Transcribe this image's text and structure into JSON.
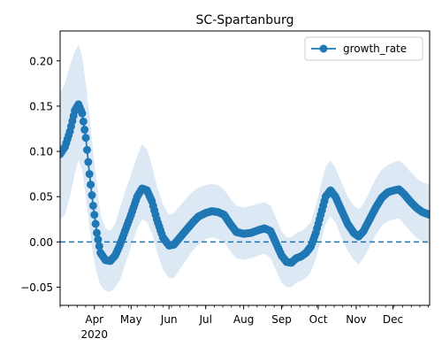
{
  "chart_data": {
    "type": "line",
    "title": "SC-Spartanburg",
    "xlabel": "",
    "ylabel": "",
    "x_range": [
      "2020-03-04",
      "2020-12-31"
    ],
    "ylim": [
      -0.07,
      0.233
    ],
    "grid": false,
    "legend": {
      "placement": "top-right",
      "entries": [
        "growth_rate"
      ]
    },
    "reference_line": {
      "y": 0.0,
      "style": "dashed"
    },
    "y_ticks": [
      -0.05,
      0.0,
      0.05,
      0.1,
      0.15,
      0.2
    ],
    "y_tick_labels": [
      "−0.05",
      "0.00",
      "0.05",
      "0.10",
      "0.15",
      "0.20"
    ],
    "x_ticks": [
      {
        "date": "2020-04-01",
        "label": "Apr",
        "sublabel": "2020"
      },
      {
        "date": "2020-05-01",
        "label": "May"
      },
      {
        "date": "2020-06-01",
        "label": "Jun"
      },
      {
        "date": "2020-07-01",
        "label": "Jul"
      },
      {
        "date": "2020-08-01",
        "label": "Aug"
      },
      {
        "date": "2020-09-01",
        "label": "Sep"
      },
      {
        "date": "2020-10-01",
        "label": "Oct"
      },
      {
        "date": "2020-11-01",
        "label": "Nov"
      },
      {
        "date": "2020-12-01",
        "label": "Dec"
      }
    ],
    "series": [
      {
        "name": "growth_rate",
        "color": "#1f77b4",
        "band_color": "#dce9f5",
        "points": [
          [
            "2020-03-04",
            0.097,
            0.025,
            0.165
          ],
          [
            "2020-03-08",
            0.105,
            0.03,
            0.175
          ],
          [
            "2020-03-12",
            0.122,
            0.05,
            0.195
          ],
          [
            "2020-03-16",
            0.145,
            0.075,
            0.21
          ],
          [
            "2020-03-19",
            0.152,
            0.09,
            0.218
          ],
          [
            "2020-03-22",
            0.142,
            0.08,
            0.205
          ],
          [
            "2020-03-25",
            0.115,
            0.05,
            0.175
          ],
          [
            "2020-03-28",
            0.075,
            0.015,
            0.14
          ],
          [
            "2020-03-31",
            0.04,
            -0.015,
            0.1
          ],
          [
            "2020-04-03",
            0.01,
            -0.035,
            0.065
          ],
          [
            "2020-04-06",
            -0.012,
            -0.048,
            0.03
          ],
          [
            "2020-04-10",
            -0.02,
            -0.054,
            0.015
          ],
          [
            "2020-04-14",
            -0.021,
            -0.055,
            0.012
          ],
          [
            "2020-04-18",
            -0.015,
            -0.05,
            0.02
          ],
          [
            "2020-04-22",
            -0.003,
            -0.042,
            0.038
          ],
          [
            "2020-04-26",
            0.012,
            -0.025,
            0.055
          ],
          [
            "2020-05-01",
            0.03,
            -0.005,
            0.075
          ],
          [
            "2020-05-06",
            0.05,
            0.015,
            0.095
          ],
          [
            "2020-05-10",
            0.059,
            0.025,
            0.108
          ],
          [
            "2020-05-14",
            0.057,
            0.022,
            0.102
          ],
          [
            "2020-05-18",
            0.045,
            0.01,
            0.085
          ],
          [
            "2020-05-22",
            0.025,
            -0.01,
            0.062
          ],
          [
            "2020-05-27",
            0.005,
            -0.03,
            0.042
          ],
          [
            "2020-06-01",
            -0.004,
            -0.04,
            0.03
          ],
          [
            "2020-06-05",
            -0.003,
            -0.04,
            0.032
          ],
          [
            "2020-06-10",
            0.005,
            -0.03,
            0.04
          ],
          [
            "2020-06-15",
            0.013,
            -0.02,
            0.048
          ],
          [
            "2020-06-20",
            0.021,
            -0.01,
            0.055
          ],
          [
            "2020-06-25",
            0.028,
            -0.003,
            0.06
          ],
          [
            "2020-07-01",
            0.032,
            0.003,
            0.063
          ],
          [
            "2020-07-06",
            0.034,
            0.005,
            0.064
          ],
          [
            "2020-07-11",
            0.033,
            0.003,
            0.063
          ],
          [
            "2020-07-16",
            0.03,
            0.0,
            0.058
          ],
          [
            "2020-07-21",
            0.02,
            -0.01,
            0.048
          ],
          [
            "2020-07-26",
            0.011,
            -0.018,
            0.04
          ],
          [
            "2020-08-01",
            0.009,
            -0.02,
            0.038
          ],
          [
            "2020-08-07",
            0.01,
            -0.018,
            0.04
          ],
          [
            "2020-08-13",
            0.013,
            -0.015,
            0.042
          ],
          [
            "2020-08-18",
            0.015,
            -0.013,
            0.044
          ],
          [
            "2020-08-23",
            0.012,
            -0.018,
            0.04
          ],
          [
            "2020-08-27",
            0.0,
            -0.03,
            0.028
          ],
          [
            "2020-09-01",
            -0.015,
            -0.045,
            0.012
          ],
          [
            "2020-09-05",
            -0.022,
            -0.05,
            0.005
          ],
          [
            "2020-09-09",
            -0.023,
            -0.05,
            0.005
          ],
          [
            "2020-09-13",
            -0.018,
            -0.045,
            0.01
          ],
          [
            "2020-09-17",
            -0.016,
            -0.043,
            0.012
          ],
          [
            "2020-09-21",
            -0.012,
            -0.04,
            0.016
          ],
          [
            "2020-09-25",
            -0.005,
            -0.033,
            0.022
          ],
          [
            "2020-09-29",
            0.01,
            -0.018,
            0.04
          ],
          [
            "2020-10-03",
            0.03,
            0.0,
            0.062
          ],
          [
            "2020-10-07",
            0.05,
            0.02,
            0.083
          ],
          [
            "2020-10-11",
            0.057,
            0.028,
            0.09
          ],
          [
            "2020-10-15",
            0.05,
            0.022,
            0.082
          ],
          [
            "2020-10-20",
            0.035,
            0.005,
            0.066
          ],
          [
            "2020-10-25",
            0.02,
            -0.01,
            0.05
          ],
          [
            "2020-10-30",
            0.01,
            -0.02,
            0.04
          ],
          [
            "2020-11-03",
            0.006,
            -0.025,
            0.036
          ],
          [
            "2020-11-07",
            0.012,
            -0.018,
            0.042
          ],
          [
            "2020-11-12",
            0.025,
            -0.005,
            0.056
          ],
          [
            "2020-11-17",
            0.038,
            0.008,
            0.07
          ],
          [
            "2020-11-22",
            0.049,
            0.018,
            0.08
          ],
          [
            "2020-11-27",
            0.055,
            0.023,
            0.085
          ],
          [
            "2020-12-02",
            0.057,
            0.025,
            0.088
          ],
          [
            "2020-12-06",
            0.058,
            0.026,
            0.09
          ],
          [
            "2020-12-10",
            0.053,
            0.02,
            0.086
          ],
          [
            "2020-12-15",
            0.045,
            0.012,
            0.078
          ],
          [
            "2020-12-20",
            0.038,
            0.005,
            0.071
          ],
          [
            "2020-12-25",
            0.033,
            0.0,
            0.066
          ],
          [
            "2020-12-31",
            0.03,
            -0.003,
            0.063
          ]
        ]
      }
    ]
  }
}
